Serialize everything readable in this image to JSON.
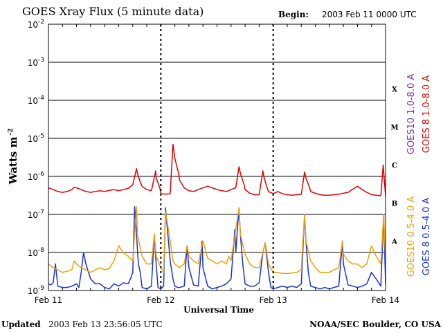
{
  "header": {
    "title": "GOES Xray Flux (5 minute data)",
    "begin_label": "Begin:",
    "begin_value": "2003 Feb 11 0000 UTC"
  },
  "footer": {
    "updated_label": "Updated",
    "updated_value": "2003 Feb 13 23:56:05 UTC",
    "credit": "NOAA/SEC Boulder, CO USA"
  },
  "chart_data": {
    "type": "line",
    "title": "GOES Xray Flux (5 minute data)",
    "xlabel": "Universal Time",
    "ylabel": "Watts m",
    "ylabel_exponent": "-2",
    "y_scale": "log",
    "ylim": [
      1e-09,
      0.01
    ],
    "y_ticks": [
      {
        "base": "10",
        "exp": "-2",
        "value": 0.01
      },
      {
        "base": "10",
        "exp": "-3",
        "value": 0.001
      },
      {
        "base": "10",
        "exp": "-4",
        "value": 0.0001
      },
      {
        "base": "10",
        "exp": "-5",
        "value": 1e-05
      },
      {
        "base": "10",
        "exp": "-6",
        "value": 1e-06
      },
      {
        "base": "10",
        "exp": "-7",
        "value": 1e-07
      },
      {
        "base": "10",
        "exp": "-8",
        "value": 1e-08
      },
      {
        "base": "10",
        "exp": "-9",
        "value": 1e-09
      }
    ],
    "x_unit": "hours since Feb 11 00:00 UTC",
    "xlim": [
      0,
      72
    ],
    "x_ticks": [
      {
        "label": "Feb 11",
        "value": 0
      },
      {
        "label": "Feb 12",
        "value": 24
      },
      {
        "label": "Feb 13",
        "value": 48
      },
      {
        "label": "Feb 14",
        "value": 72
      }
    ],
    "flare_classes": [
      {
        "label": "X",
        "value": 0.0002
      },
      {
        "label": "M",
        "value": 2e-05
      },
      {
        "label": "C",
        "value": 2e-06
      },
      {
        "label": "B",
        "value": 2e-07
      },
      {
        "label": "A",
        "value": 2e-08
      }
    ],
    "grid": true,
    "legend_placement": "right",
    "series": [
      {
        "name": "GOES 8 1.0-8.0 A",
        "color": "#e00000",
        "x": [
          0,
          1,
          2,
          3,
          4,
          5,
          5.5,
          6,
          7,
          8,
          9,
          10,
          11,
          12,
          13,
          14,
          15,
          16,
          17,
          18,
          18.8,
          19,
          19.6,
          20,
          21,
          22,
          22.9,
          23,
          23.8,
          24,
          25,
          26,
          26.6,
          27,
          27.8,
          28,
          29,
          30,
          31,
          32,
          33,
          34,
          35,
          36,
          37,
          38,
          39,
          40,
          40.7,
          41,
          41.8,
          42,
          43,
          44,
          45,
          45.8,
          46,
          46.7,
          47,
          48,
          49,
          50,
          51,
          52,
          53,
          54,
          54.7,
          55,
          55.8,
          56,
          57,
          58,
          59,
          60,
          61,
          62,
          63,
          64,
          65,
          66,
          67,
          68,
          69,
          70,
          71,
          71.5,
          72
        ],
        "values": [
          5e-07,
          4.5e-07,
          4e-07,
          3.8e-07,
          4e-07,
          4.5e-07,
          5.2e-07,
          5e-07,
          4.5e-07,
          4e-07,
          3.8e-07,
          4e-07,
          4.2e-07,
          4e-07,
          4.3e-07,
          4.5e-07,
          4.2e-07,
          4.5e-07,
          4.8e-07,
          6e-07,
          1.6e-06,
          1.2e-06,
          7e-07,
          5.5e-07,
          4.5e-07,
          4.2e-07,
          1.4e-06,
          9e-07,
          5e-07,
          3.5e-07,
          3.4e-07,
          3.5e-07,
          7e-06,
          3e-06,
          1.2e-06,
          8e-07,
          5e-07,
          4.2e-07,
          4e-07,
          4.5e-07,
          5e-07,
          5.5e-07,
          5e-07,
          4.5e-07,
          4.2e-07,
          4e-07,
          4.5e-07,
          5e-07,
          1.8e-06,
          1.2e-06,
          6e-07,
          4.5e-07,
          3.6e-07,
          3.3e-07,
          3.3e-07,
          1.4e-06,
          1e-06,
          5e-07,
          4e-07,
          3.5e-07,
          4e-07,
          3.5e-07,
          3.3e-07,
          3.2e-07,
          3.3e-07,
          3.4e-07,
          1.3e-06,
          9e-07,
          5e-07,
          4e-07,
          3.6e-07,
          3.3e-07,
          3.2e-07,
          3.2e-07,
          3.3e-07,
          3.4e-07,
          3.6e-07,
          3.8e-07,
          4.6e-07,
          5.5e-07,
          4.5e-07,
          3.8e-07,
          3.3e-07,
          3.2e-07,
          3.1e-07,
          2e-06,
          3e-07
        ]
      },
      {
        "name": "GOES10 1.0-8.0 A",
        "color": "#7b2fbe",
        "x": [],
        "values": []
      },
      {
        "name": "GOES 8 0.5-4.0 A",
        "color": "#1830e0",
        "x": [
          0,
          0.5,
          1,
          1.5,
          2,
          3,
          4,
          5,
          6,
          6.5,
          7,
          7.5,
          8,
          9,
          10,
          11,
          12,
          13,
          14,
          15,
          16,
          17,
          17.5,
          18,
          18.4,
          18.8,
          19.2,
          19.6,
          20,
          21,
          22,
          22.6,
          23,
          23.4,
          24,
          24.6,
          25,
          25.5,
          26,
          26.6,
          27,
          27.6,
          28,
          29,
          29.6,
          30,
          31,
          32,
          32.8,
          33,
          34,
          35,
          36,
          37,
          38,
          39,
          39.8,
          40,
          40.7,
          41,
          41.5,
          42,
          43,
          44,
          45,
          45.8,
          46.3,
          47,
          47.5,
          48,
          49,
          50,
          51,
          52,
          53,
          54,
          54.7,
          55,
          55.5,
          56,
          57,
          58,
          59,
          60,
          61,
          62,
          62.8,
          63,
          64,
          65,
          66,
          67,
          68,
          69,
          70,
          71,
          71.6,
          72
        ],
        "values": [
          1.5e-09,
          1.4e-09,
          1.6e-09,
          5e-09,
          1.3e-09,
          1.2e-09,
          1.2e-09,
          1.3e-09,
          1.5e-09,
          1.2e-09,
          3e-09,
          1e-08,
          5e-09,
          2e-09,
          1.5e-09,
          1.5e-09,
          1.2e-09,
          1.1e-09,
          1.5e-09,
          1.3e-09,
          1.6e-09,
          1.5e-09,
          2e-09,
          3e-09,
          1.6e-07,
          3e-08,
          5e-09,
          3e-09,
          1.2e-09,
          1.1e-09,
          1.3e-09,
          3e-08,
          5e-09,
          1.2e-09,
          1.1e-09,
          1.3e-09,
          1.5e-07,
          3e-08,
          6e-09,
          2e-09,
          1.3e-09,
          1.2e-09,
          1.2e-09,
          1.3e-09,
          1.5e-08,
          4e-09,
          1.4e-09,
          1.3e-09,
          2e-08,
          4e-09,
          1.3e-09,
          1.1e-09,
          1.2e-09,
          1.3e-09,
          1.5e-09,
          2e-09,
          4e-08,
          1e-08,
          1.5e-07,
          3e-08,
          5e-09,
          1.5e-09,
          1.3e-09,
          1.3e-09,
          1.6e-09,
          1e-08,
          1.8e-08,
          3e-09,
          1.2e-09,
          1.1e-09,
          1.2e-09,
          1.3e-09,
          1.2e-09,
          1.3e-09,
          1.2e-09,
          1.5e-09,
          1e-07,
          2e-08,
          3e-09,
          1.3e-09,
          1.2e-09,
          1.1e-09,
          1.2e-09,
          1.1e-09,
          1.2e-09,
          1.3e-09,
          2e-08,
          5e-09,
          1.4e-09,
          1.3e-09,
          1.2e-09,
          1.3e-09,
          1.5e-09,
          3e-09,
          2e-09,
          1.3e-09,
          1e-07,
          1.5e-09
        ]
      },
      {
        "name": "GOES10 0.5-4.0 A",
        "color": "#f0a000",
        "x": [
          0,
          1,
          2,
          3,
          4,
          5,
          5.5,
          6,
          7,
          8,
          9,
          10,
          11,
          12,
          13,
          14,
          15,
          16,
          17,
          18,
          18.8,
          19,
          20,
          21,
          22,
          22.6,
          23,
          24,
          24.6,
          25,
          26,
          26.6,
          27,
          28,
          29,
          29.6,
          30,
          31,
          32,
          33,
          34,
          35,
          36,
          37,
          38,
          38.5,
          39,
          40,
          40.7,
          41,
          42,
          43,
          44,
          45,
          45.8,
          46.3,
          47,
          48,
          49,
          50,
          51,
          52,
          53,
          54,
          54.7,
          55,
          56,
          57,
          58,
          59,
          60,
          61,
          62,
          62.8,
          63,
          64,
          65,
          66,
          67,
          68,
          69,
          70,
          71,
          71.6,
          72
        ],
        "values": [
          5e-09,
          4e-09,
          3.5e-09,
          3e-09,
          3.2e-09,
          3.5e-09,
          6e-09,
          5e-09,
          4e-09,
          3.5e-09,
          3e-09,
          3.5e-09,
          4e-09,
          3.5e-09,
          3.8e-09,
          6e-09,
          1.5e-08,
          1e-08,
          8e-09,
          6e-09,
          1.6e-07,
          3e-08,
          8e-09,
          5e-09,
          5e-09,
          3e-08,
          8e-09,
          4e-09,
          3e-09,
          1.2e-07,
          2e-08,
          6e-09,
          5e-09,
          4e-09,
          5e-09,
          1.5e-08,
          8e-09,
          6e-09,
          5e-09,
          2e-08,
          7e-09,
          6e-09,
          5e-09,
          6e-09,
          5e-09,
          8e-09,
          6e-09,
          4e-08,
          1.5e-07,
          3e-08,
          9e-09,
          5e-09,
          4e-09,
          4e-09,
          1e-08,
          1.8e-08,
          5e-09,
          3e-09,
          3e-09,
          2.8e-09,
          2.8e-09,
          2.9e-09,
          3e-09,
          3.5e-09,
          1e-07,
          2e-08,
          6e-09,
          4e-09,
          3e-09,
          3e-09,
          3e-09,
          3.5e-09,
          4e-09,
          2e-08,
          9e-09,
          6e-09,
          5e-09,
          5e-09,
          4e-09,
          5e-09,
          1.5e-08,
          8e-09,
          5e-09,
          1e-07,
          6e-09
        ]
      }
    ]
  }
}
